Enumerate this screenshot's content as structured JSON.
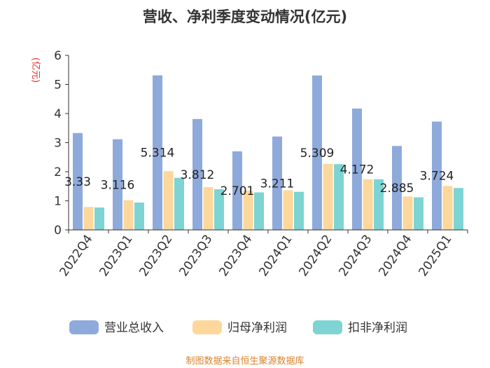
{
  "chart_data": {
    "type": "bar",
    "title": "营收、净利季度变动情况(亿元)",
    "ylabel": "(亿元)",
    "xlabel": "",
    "ylim": [
      0,
      6
    ],
    "yticks": [
      "0",
      "1",
      "2",
      "3",
      "4",
      "5",
      "6"
    ],
    "grid": false,
    "legend_position": "bottom",
    "categories": [
      "2022Q4",
      "2023Q1",
      "2023Q2",
      "2023Q3",
      "2023Q4",
      "2024Q1",
      "2024Q2",
      "2024Q3",
      "2024Q4",
      "2025Q1"
    ],
    "series": [
      {
        "name": "营业总收入",
        "color": "#8eaadb",
        "values": [
          3.33,
          3.116,
          5.314,
          3.812,
          2.701,
          3.211,
          5.309,
          4.172,
          2.885,
          3.724
        ]
      },
      {
        "name": "归母净利润",
        "color": "#fdd79b",
        "values": [
          0.79,
          1.02,
          2.02,
          1.47,
          1.35,
          1.36,
          2.27,
          1.74,
          1.15,
          1.51
        ]
      },
      {
        "name": "扣非净利润",
        "color": "#7dd4d2",
        "values": [
          0.77,
          0.94,
          1.79,
          1.4,
          1.29,
          1.31,
          2.26,
          1.74,
          1.12,
          1.44
        ]
      }
    ],
    "data_labels": [
      "3.33",
      "3.116",
      "5.314",
      "3.812",
      "2.701",
      "3.211",
      "5.309",
      "4.172",
      "2.885",
      "3.724"
    ]
  },
  "source": "制图数据来自恒生聚源数据库"
}
